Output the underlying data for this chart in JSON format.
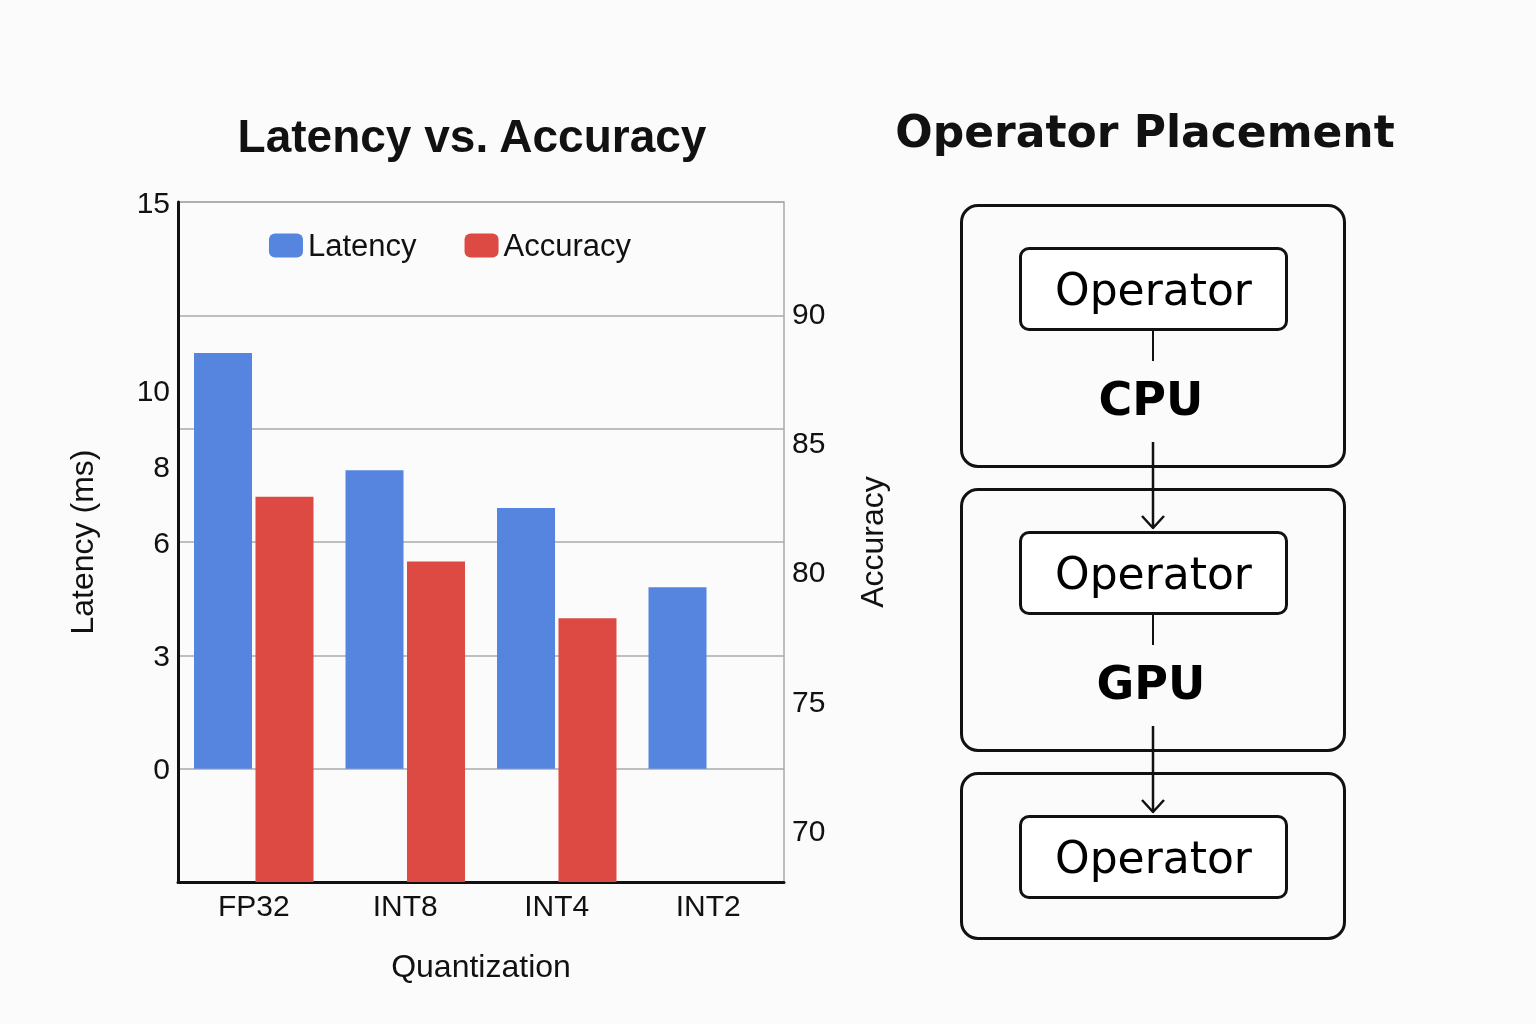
{
  "chart_data": [
    {
      "type": "bar",
      "title": "Latency vs. Accuracy",
      "xlabel": "Quantization",
      "ylabel": "Latency (ms)",
      "y2label": "Accuracy",
      "categories": [
        "FP32",
        "INT8",
        "INT4",
        "INT2"
      ],
      "series": [
        {
          "name": "Latency",
          "color": "#5585de",
          "values": [
            11,
            7.9,
            6.9,
            4.8
          ]
        },
        {
          "name": "Accuracy",
          "color": "#dc4a43",
          "axis": "y2",
          "values": [
            82.9,
            80.4,
            78.2,
            null
          ]
        }
      ],
      "ylim": [
        -3,
        15
      ],
      "yticks": [
        0,
        3,
        6,
        8,
        10,
        15
      ],
      "y2lim": [
        68,
        94.3
      ],
      "y2ticks": [
        70,
        75,
        80,
        85,
        90
      ],
      "grid": "y",
      "legend": "top"
    },
    {
      "type": "other",
      "title": "Operator Placement",
      "annotations": [
        "Operator",
        "CPU",
        "Operator",
        "GPU",
        "Operator"
      ]
    }
  ]
}
